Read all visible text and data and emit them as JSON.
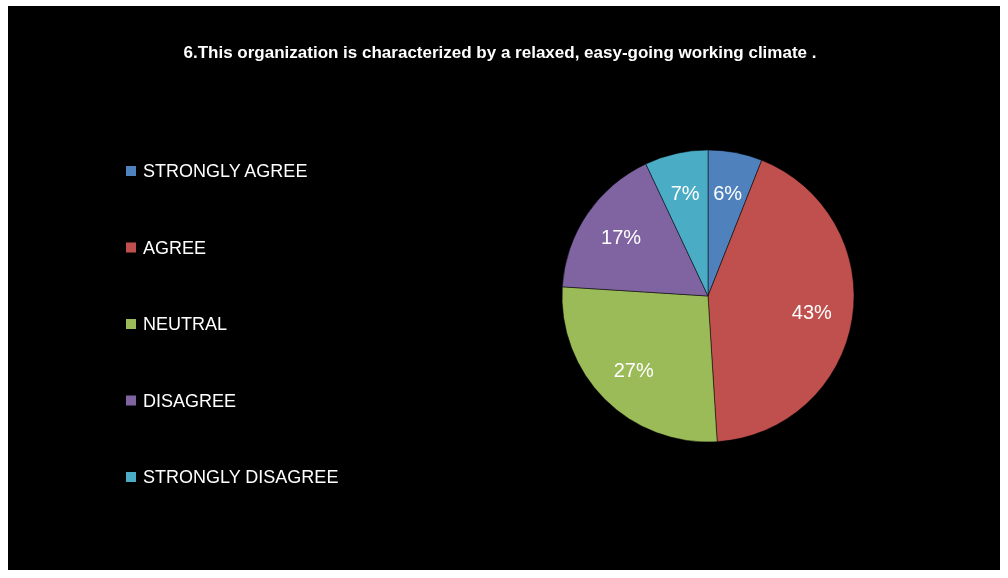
{
  "chart_data": {
    "type": "pie",
    "title": "6.This organization is characterized by a relaxed, easy-going working climate .",
    "categories": [
      "STRONGLY AGREE",
      "AGREE",
      "NEUTRAL",
      "DISAGREE",
      "STRONGLY DISAGREE"
    ],
    "values": [
      6,
      43,
      27,
      17,
      7
    ],
    "colors": [
      "#4f81bd",
      "#c0504d",
      "#9bbb59",
      "#8064a2",
      "#4bacc6"
    ],
    "value_labels": [
      "6%",
      "43%",
      "27%",
      "17%",
      "7%"
    ],
    "legend": "left"
  }
}
